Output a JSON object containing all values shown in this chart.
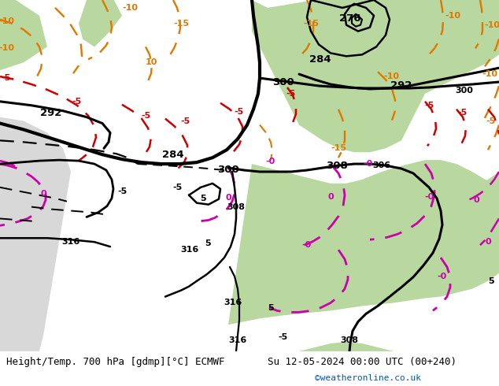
{
  "title_left": "Height/Temp. 700 hPa [gdmp][°C] ECMWF",
  "title_right": "Su 12-05-2024 00:00 UTC (00+240)",
  "credit": "©weatheronline.co.uk",
  "fig_width": 6.34,
  "fig_height": 4.9,
  "dpi": 100,
  "title_fontsize": 9.0,
  "credit_fontsize": 8.0,
  "credit_color": "#0055bb",
  "map_gray": "#c8c8c8",
  "land_gray": "#b8b8b8",
  "green_color": "#b8d8a0",
  "sea_color": "#d0d0d0",
  "white_bg": "#ffffff"
}
